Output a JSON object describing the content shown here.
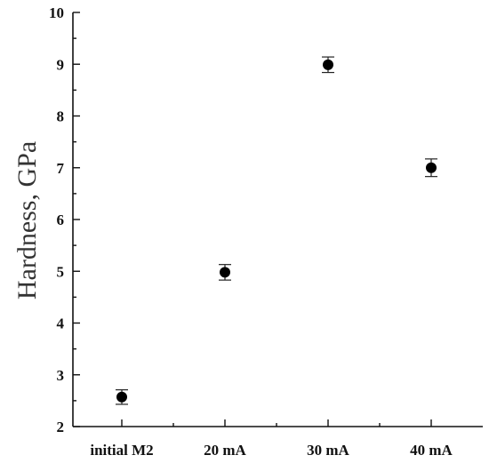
{
  "chart_data": {
    "type": "scatter",
    "title": "",
    "xlabel": "",
    "ylabel": "Hardness, GPa",
    "categories": [
      "initial M2",
      "20 mA",
      "30 mA",
      "40 mA"
    ],
    "series": [
      {
        "values": [
          2.57,
          4.98,
          8.99,
          7.0
        ],
        "errors": [
          0.14,
          0.15,
          0.15,
          0.17
        ]
      }
    ],
    "ylim": [
      2,
      10
    ],
    "yticks": [
      2,
      3,
      4,
      5,
      6,
      7,
      8,
      9,
      10
    ],
    "ytick_labels": [
      "2",
      "3",
      "4",
      "5",
      "6",
      "7",
      "8",
      "9",
      "10"
    ],
    "grid": false,
    "legend": "none",
    "marker_color": "#000000"
  }
}
